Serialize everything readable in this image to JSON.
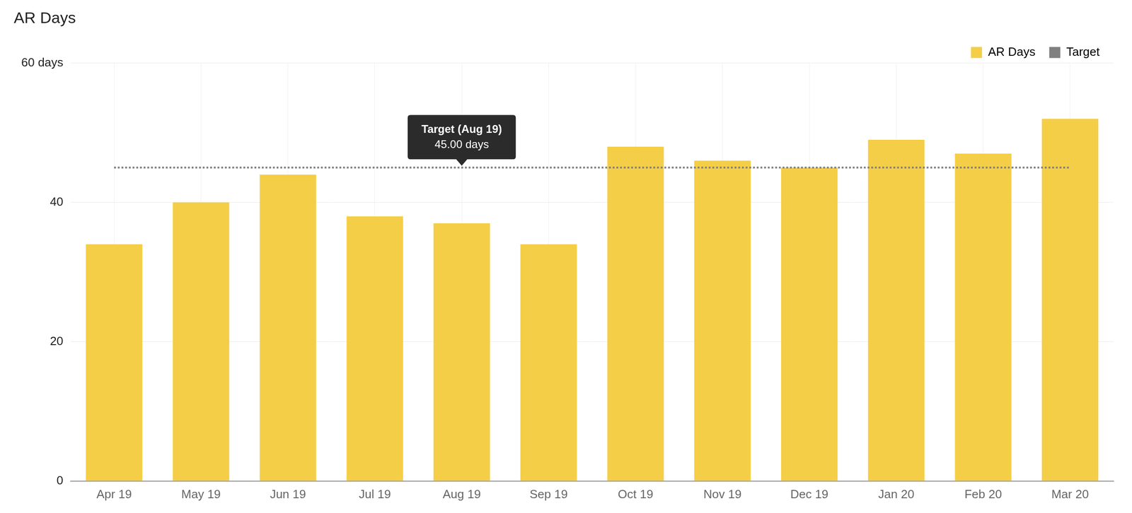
{
  "chart_data": {
    "type": "bar",
    "title": "AR Days",
    "categories": [
      "Apr 19",
      "May 19",
      "Jun 19",
      "Jul 19",
      "Aug 19",
      "Sep 19",
      "Oct 19",
      "Nov 19",
      "Dec 19",
      "Jan 20",
      "Feb 20",
      "Mar 20"
    ],
    "series": [
      {
        "name": "AR Days",
        "color": "#f5ce47",
        "values": [
          34,
          40,
          44,
          38,
          37,
          34,
          48,
          46,
          45,
          49,
          47,
          52
        ]
      },
      {
        "name": "Target",
        "color": "#808080",
        "type": "line",
        "line_style": "dotted",
        "marker": "none",
        "values": [
          45,
          45,
          45,
          45,
          45,
          45,
          45,
          45,
          45,
          45,
          45,
          45
        ]
      }
    ],
    "ylim": [
      0,
      60
    ],
    "yticks": [
      0,
      20,
      40,
      {
        "value": 60,
        "label": "60 days"
      }
    ],
    "grid": true,
    "legend": "top-right",
    "annotation": {
      "x": "Aug 19",
      "series": "Target",
      "title": "Target (Aug 19)",
      "text": "45.00 days"
    }
  }
}
